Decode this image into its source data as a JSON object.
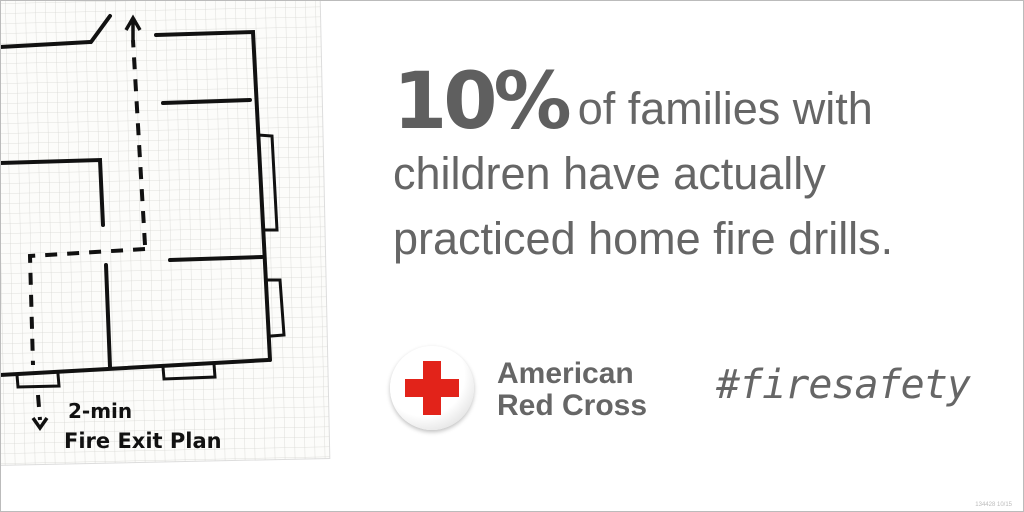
{
  "plan": {
    "label_line1": "2-min",
    "label_line2": "Fire Exit Plan"
  },
  "stat": {
    "percent": "10%",
    "line1_rest": "of families with",
    "line2": "children have actually",
    "line3": "practiced home fire drills."
  },
  "logo": {
    "org_line1": "American",
    "org_line2": "Red Cross",
    "icon": "red-cross-icon"
  },
  "hashtag": "#firesafety",
  "code": "134428 10/15",
  "colors": {
    "text": "#666666",
    "cross": "#e2231a"
  }
}
